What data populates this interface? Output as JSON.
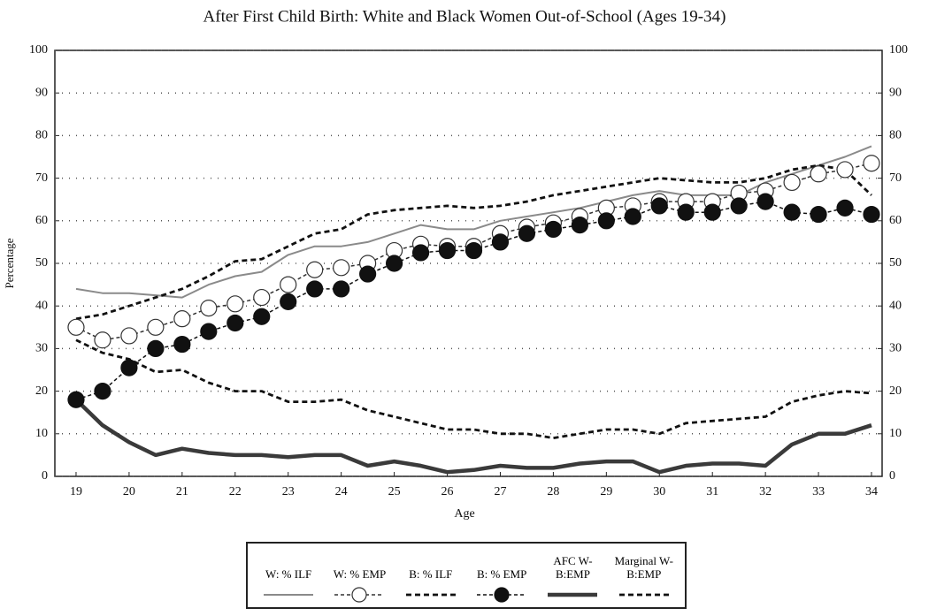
{
  "chart_data": {
    "type": "line",
    "title": "After First Child Birth: White and Black  Women Out-of-School (Ages 19-34)",
    "xlabel": "Age",
    "ylabel": "Percentage",
    "x": [
      19,
      19.5,
      20,
      20.5,
      21,
      21.5,
      22,
      22.5,
      23,
      23.5,
      24,
      24.5,
      25,
      25.5,
      26,
      26.5,
      27,
      27.5,
      28,
      28.5,
      29,
      29.5,
      30,
      30.5,
      31,
      31.5,
      32,
      32.5,
      33,
      33.5,
      34
    ],
    "xlim": [
      18.6,
      34.2
    ],
    "xticks": [
      19,
      20,
      21,
      22,
      23,
      24,
      25,
      26,
      27,
      28,
      29,
      30,
      31,
      32,
      33,
      34
    ],
    "ylim": [
      0,
      100
    ],
    "yticks": [
      0,
      10,
      20,
      30,
      40,
      50,
      60,
      70,
      80,
      90,
      100
    ],
    "y2lim": [
      0,
      100
    ],
    "y2ticks": [
      0,
      10,
      20,
      30,
      40,
      50,
      60,
      70,
      80,
      90,
      100
    ],
    "grid": true,
    "series": [
      {
        "name": "W: % ILF",
        "color": "#8a8a8a",
        "line": "solid",
        "width": 2,
        "marker": "none",
        "values": [
          44,
          43,
          43,
          42.5,
          42,
          45,
          47,
          48,
          52,
          54,
          54,
          55,
          57,
          59,
          58,
          58,
          60,
          61,
          62,
          63,
          64.5,
          66,
          67,
          66,
          66,
          66,
          69,
          71,
          73,
          75,
          77.5
        ]
      },
      {
        "name": "W: % EMP",
        "color": "#333333",
        "line": "dashed",
        "width": 1.5,
        "marker": "open",
        "values": [
          35,
          32,
          33,
          35,
          37,
          39.5,
          40.5,
          42,
          45,
          48.5,
          49,
          50,
          53,
          54.5,
          54,
          54,
          57,
          58.5,
          59.5,
          61,
          63,
          63.5,
          64.5,
          64.5,
          64.5,
          66.5,
          67,
          69,
          71,
          72,
          73.5
        ]
      },
      {
        "name": "B: % ILF",
        "color": "#111111",
        "line": "dashed",
        "width": 2.8,
        "marker": "none",
        "values": [
          37,
          38,
          40,
          42,
          44,
          47,
          50.5,
          51,
          54,
          57,
          58,
          61.5,
          62.5,
          63,
          63.5,
          63,
          63.5,
          64.5,
          66,
          67,
          68,
          69,
          70,
          69.5,
          69,
          69,
          70,
          72,
          73,
          72,
          66
        ]
      },
      {
        "name": "B: % EMP",
        "color": "#111111",
        "line": "dashed",
        "width": 1.5,
        "marker": "filled",
        "values": [
          18,
          20,
          25.5,
          30,
          31,
          34,
          36,
          37.5,
          41,
          44,
          44,
          47.5,
          50,
          52.5,
          53,
          53,
          55,
          57,
          58,
          59,
          60,
          61,
          63.5,
          62,
          62,
          63.5,
          64.5,
          62,
          61.5,
          63,
          61.5
        ]
      },
      {
        "name": "AFC W-B:EMP",
        "color": "#3a3a3a",
        "line": "solid",
        "width": 4.5,
        "marker": "none",
        "values": [
          18,
          12,
          8,
          5,
          6.5,
          5.5,
          5,
          5,
          4.5,
          5,
          5,
          2.5,
          3.5,
          2.5,
          1,
          1.5,
          2.5,
          2,
          2,
          3,
          3.5,
          3.5,
          1,
          2.5,
          3,
          3,
          2.5,
          7.5,
          10,
          10,
          12
        ]
      },
      {
        "name": "Marginal W-B:EMP",
        "color": "#111111",
        "line": "dashed",
        "width": 2.8,
        "marker": "none",
        "values": [
          32,
          29,
          27.5,
          24.5,
          25,
          22,
          20,
          20,
          17.5,
          17.5,
          18,
          15.5,
          14,
          12.5,
          11,
          11,
          10,
          10,
          9,
          10,
          11,
          11,
          10,
          12.5,
          13,
          13.5,
          14,
          17.5,
          19,
          20,
          19.5
        ]
      }
    ]
  }
}
